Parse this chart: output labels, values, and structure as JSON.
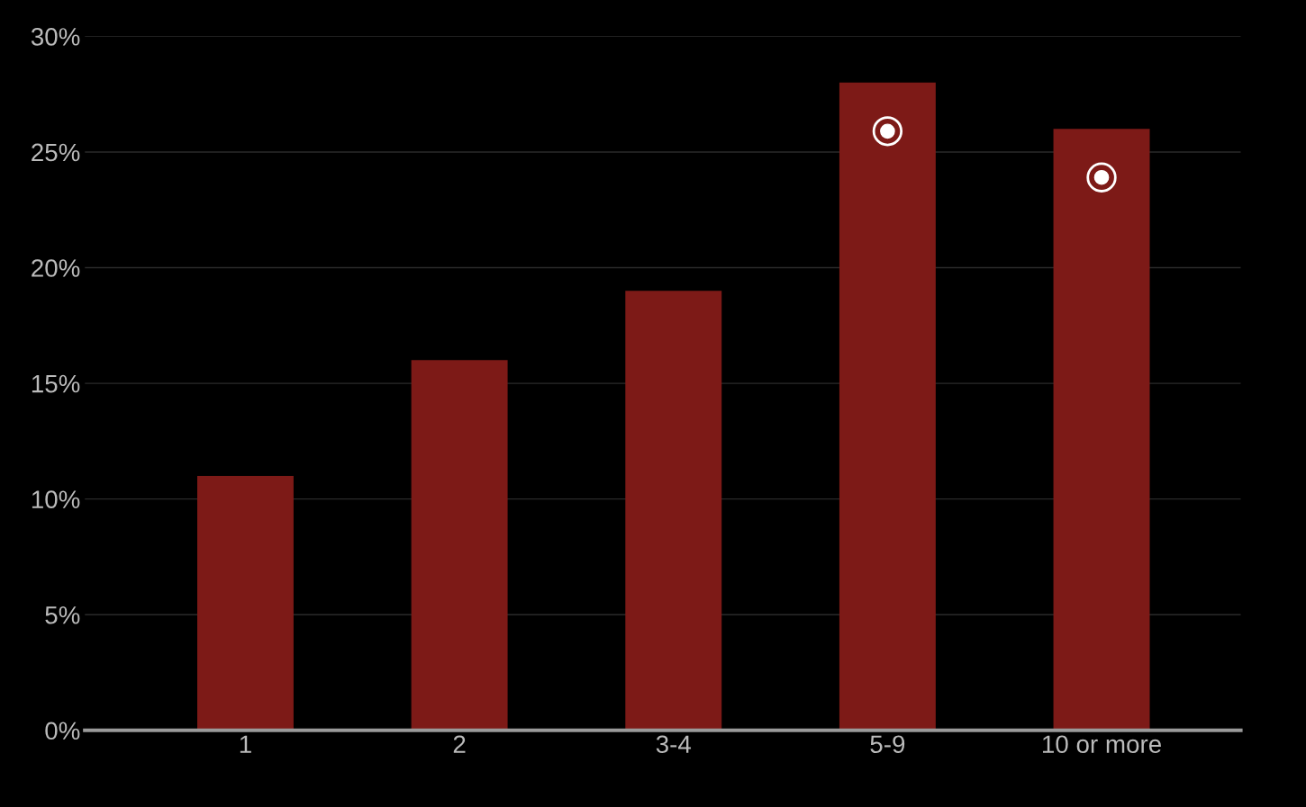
{
  "chart_data": {
    "type": "bar",
    "categories": [
      "1",
      "2",
      "3-4",
      "5-9",
      "10 or more"
    ],
    "values": [
      11,
      16,
      19,
      28,
      26
    ],
    "color": "#7d1a17",
    "ylim": [
      0,
      30
    ],
    "yticks": [
      {
        "value": 0,
        "label": "0%"
      },
      {
        "value": 5,
        "label": "5%"
      },
      {
        "value": 10,
        "label": "10%"
      },
      {
        "value": 15,
        "label": "15%"
      },
      {
        "value": 20,
        "label": "20%"
      },
      {
        "value": 25,
        "label": "25%"
      },
      {
        "value": 30,
        "label": "30%"
      }
    ],
    "grid": "y",
    "legend": false
  }
}
